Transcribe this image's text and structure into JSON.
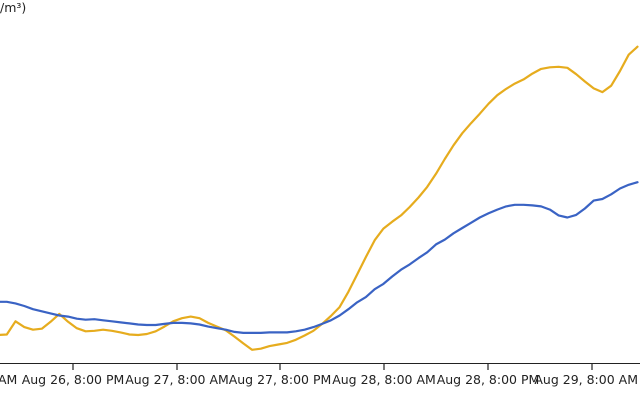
{
  "chart_data": {
    "type": "line",
    "ylabel": "/m³)",
    "x_ticks": [
      "AM",
      "Aug 26, 8:00 PM",
      "Aug 27, 8:00 AM",
      "Aug 27, 8:00 PM",
      "Aug 28, 8:00 AM",
      "Aug 28, 8:00 PM",
      "Aug 29, 8:00 AM"
    ],
    "grid": false,
    "colors": [
      "#e6ac1e",
      "#3a63c4"
    ],
    "x": [
      0,
      1,
      2,
      3,
      4,
      5,
      6,
      7,
      8,
      9,
      10,
      11,
      12,
      13,
      14,
      15,
      16,
      17,
      18,
      19,
      20,
      21,
      22,
      23,
      24,
      25,
      26,
      27,
      28,
      29,
      30,
      31,
      32,
      33,
      34,
      35,
      36,
      37,
      38,
      39,
      40,
      41,
      42,
      43,
      44,
      45,
      46,
      47,
      48,
      49,
      50,
      51,
      52,
      53,
      54,
      55,
      56,
      57,
      58,
      59,
      60,
      61,
      62,
      63,
      64,
      65,
      66,
      67,
      68,
      69,
      70,
      71,
      72,
      73
    ],
    "series": [
      {
        "values": [
          5.5,
          5.6,
          8.1,
          7.0,
          6.5,
          6.7,
          8.0,
          9.5,
          8.0,
          6.8,
          6.2,
          6.3,
          6.5,
          6.3,
          6.0,
          5.6,
          5.5,
          5.7,
          6.2,
          7.1,
          8.1,
          8.7,
          9.0,
          8.7,
          7.8,
          7.1,
          6.4,
          5.2,
          3.9,
          2.7,
          2.9,
          3.4,
          3.7,
          4.0,
          4.6,
          5.4,
          6.3,
          7.6,
          9.1,
          10.8,
          13.7,
          17.0,
          20.3,
          23.5,
          25.7,
          27.0,
          28.2,
          29.8,
          31.6,
          33.6,
          36.1,
          38.9,
          41.5,
          43.8,
          45.7,
          47.5,
          49.4,
          51.0,
          52.2,
          53.2,
          54.0,
          55.1,
          56.0,
          56.3,
          56.4,
          56.2,
          55.0,
          53.6,
          52.3,
          51.6,
          52.8,
          55.6,
          58.7,
          60.2
        ]
      },
      {
        "values": [
          11.8,
          11.8,
          11.5,
          11.0,
          10.4,
          10.0,
          9.6,
          9.2,
          9.0,
          8.6,
          8.4,
          8.5,
          8.3,
          8.1,
          7.9,
          7.7,
          7.5,
          7.4,
          7.4,
          7.6,
          7.8,
          7.8,
          7.7,
          7.5,
          7.1,
          6.8,
          6.5,
          6.1,
          5.9,
          5.9,
          5.9,
          6.0,
          6.0,
          6.0,
          6.2,
          6.5,
          7.0,
          7.6,
          8.3,
          9.2,
          10.4,
          11.7,
          12.7,
          14.2,
          15.2,
          16.6,
          17.9,
          18.9,
          20.1,
          21.2,
          22.7,
          23.6,
          24.8,
          25.8,
          26.8,
          27.8,
          28.6,
          29.3,
          29.9,
          30.2,
          30.2,
          30.1,
          29.9,
          29.3,
          28.2,
          27.8,
          28.3,
          29.5,
          31.0,
          31.3,
          32.2,
          33.3,
          34.0,
          34.5
        ]
      }
    ]
  }
}
